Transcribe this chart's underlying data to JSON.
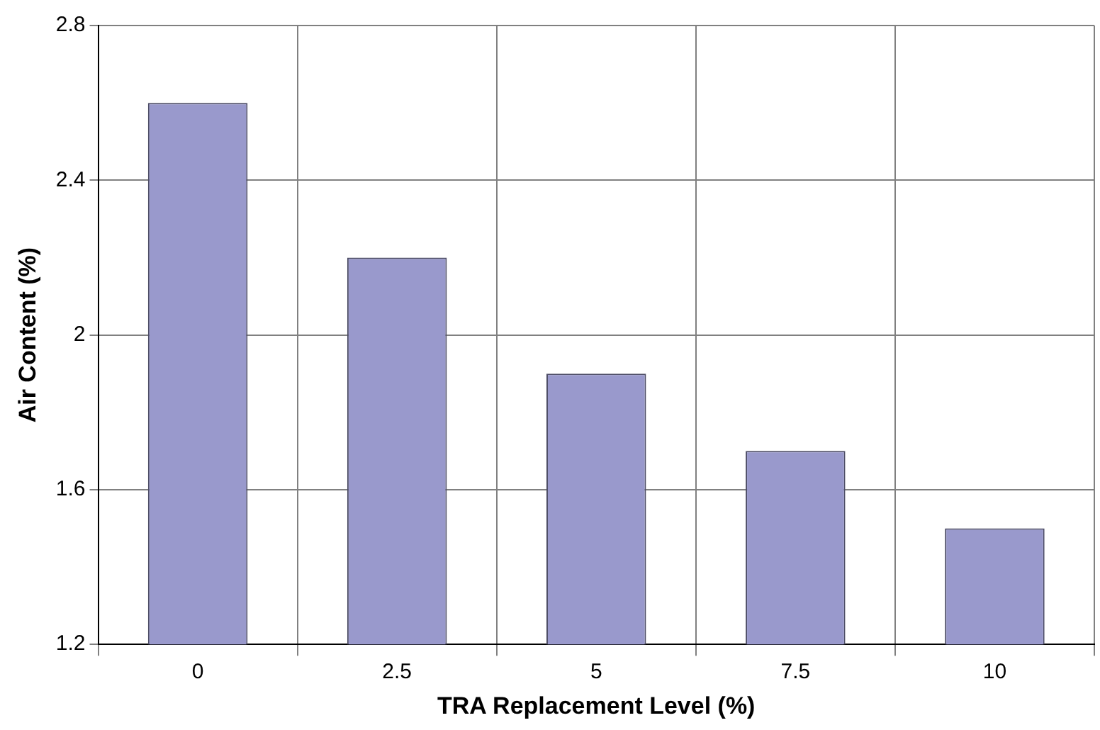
{
  "chart_data": {
    "type": "bar",
    "xlabel": "TRA Replacement Level (%)",
    "ylabel": "Air Content (%)",
    "categories": [
      "0",
      "2.5",
      "5",
      "7.5",
      "10"
    ],
    "values": [
      2.6,
      2.2,
      1.9,
      1.7,
      1.5
    ],
    "color": "#9999cc",
    "ylim": [
      1.2,
      2.8
    ],
    "yticks": [
      1.2,
      1.6,
      2,
      2.4,
      2.8
    ],
    "grid": true,
    "legend": false
  }
}
